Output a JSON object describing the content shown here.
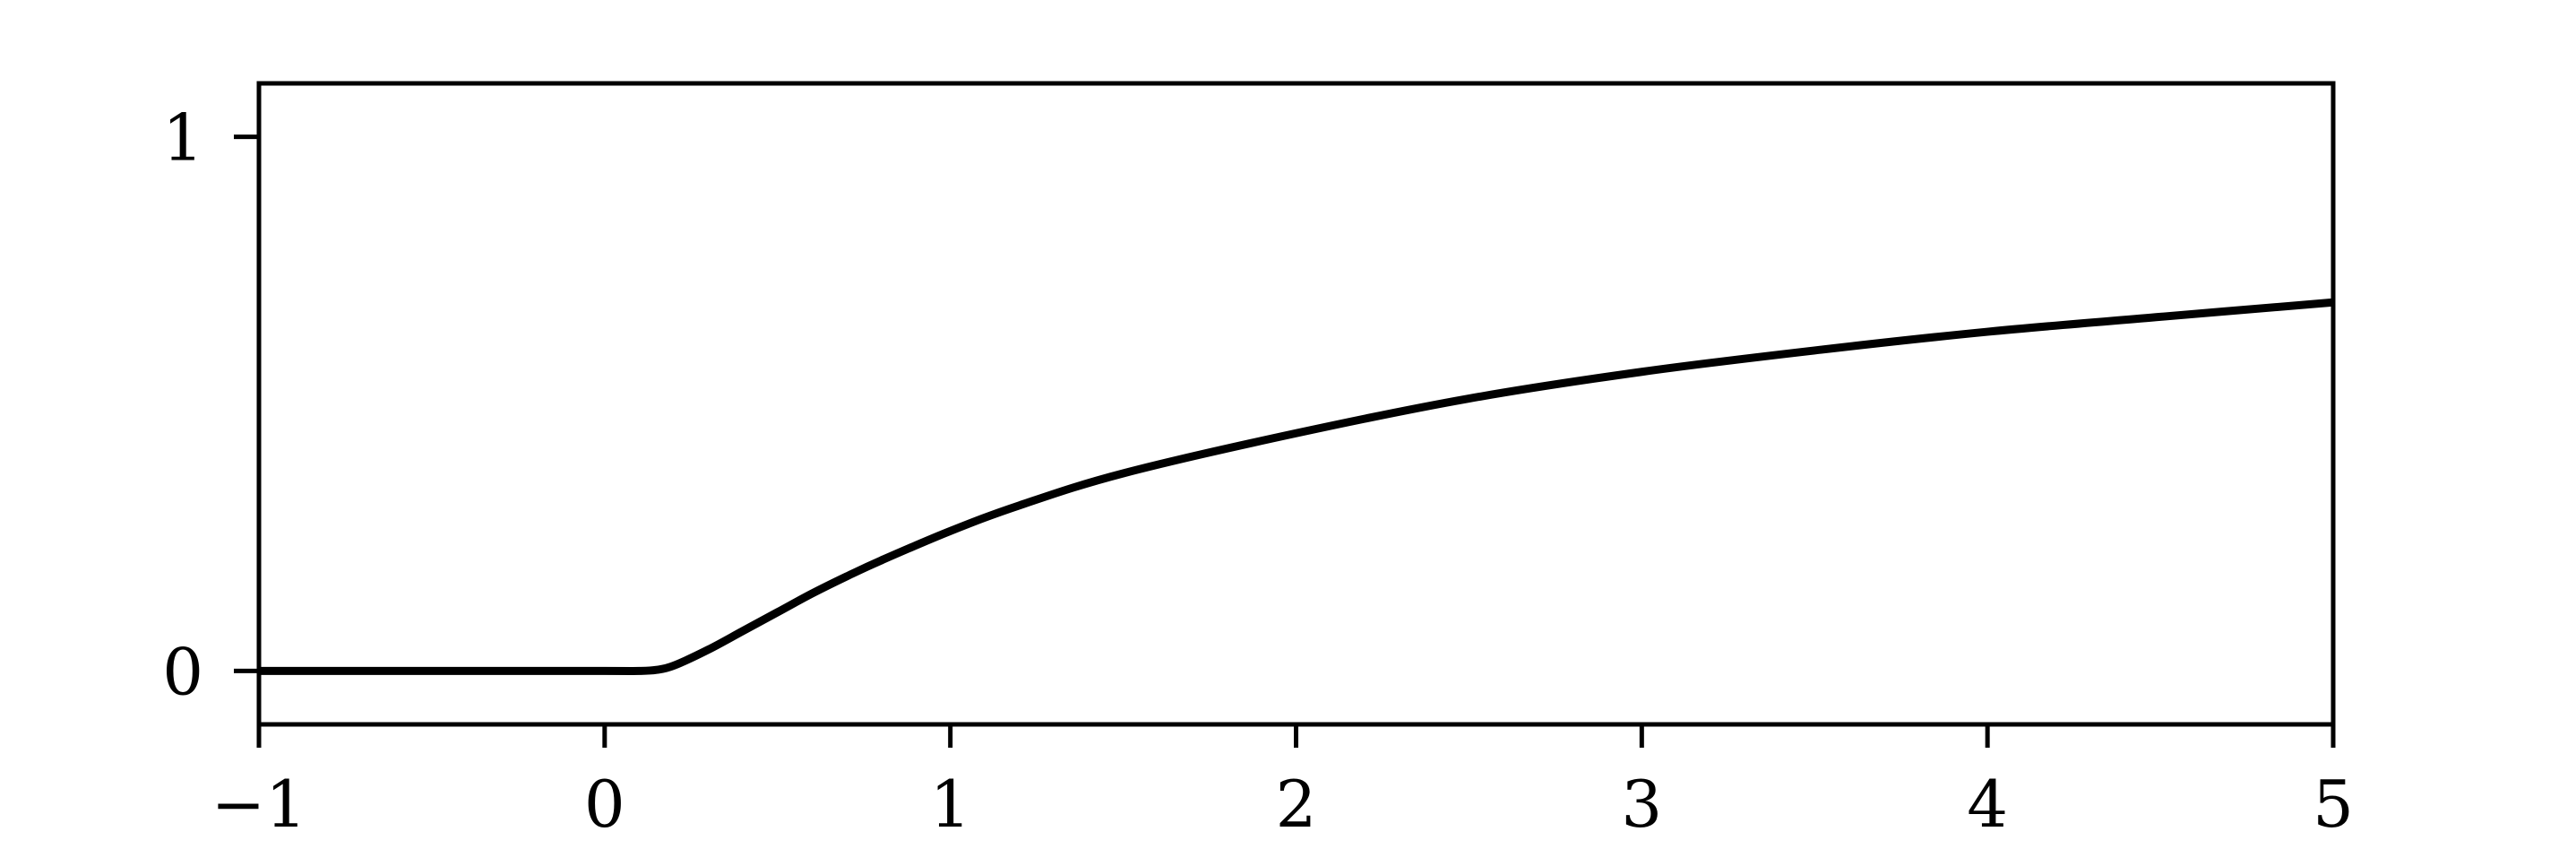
{
  "chart_data": {
    "type": "line",
    "title": "",
    "xlabel": "",
    "ylabel": "",
    "xlim": [
      -1,
      5
    ],
    "ylim": [
      -0.1,
      1.1
    ],
    "x_ticks": [
      {
        "value": -1,
        "label": "−1"
      },
      {
        "value": 0,
        "label": "0"
      },
      {
        "value": 1,
        "label": "1"
      },
      {
        "value": 2,
        "label": "2"
      },
      {
        "value": 3,
        "label": "3"
      },
      {
        "value": 4,
        "label": "4"
      },
      {
        "value": 5,
        "label": "5"
      }
    ],
    "y_ticks": [
      {
        "value": 0,
        "label": "0"
      },
      {
        "value": 1,
        "label": "1"
      }
    ],
    "grid": false,
    "legend": "none",
    "series": [
      {
        "color": "#000000",
        "x": [
          -1,
          -0.5,
          0,
          0.1,
          0.15,
          0.2,
          0.3,
          0.4,
          0.5,
          0.6,
          0.7,
          0.8,
          1.0,
          1.2,
          1.5,
          2.0,
          2.5,
          3.0,
          3.5,
          4.0,
          4.5,
          5.0
        ],
        "y": [
          0,
          0,
          0,
          0,
          0.002,
          0.01,
          0.04,
          0.075,
          0.11,
          0.145,
          0.177,
          0.207,
          0.262,
          0.31,
          0.37,
          0.445,
          0.51,
          0.56,
          0.6,
          0.635,
          0.663,
          0.69
        ]
      }
    ]
  }
}
